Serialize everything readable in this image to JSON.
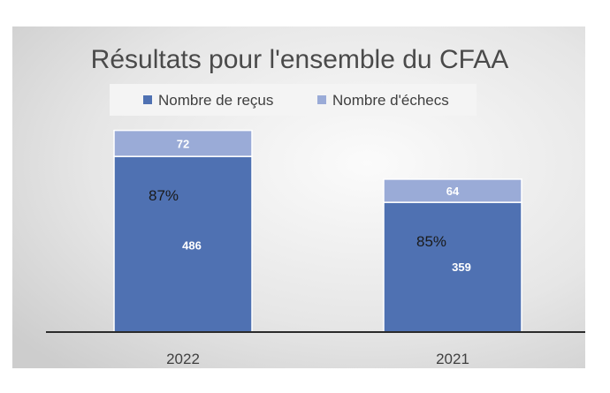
{
  "chart_data": {
    "type": "bar",
    "stacked": true,
    "title": "Résultats pour l'ensemble du CFAA",
    "legend_position": "top",
    "categories": [
      "2022",
      "2021"
    ],
    "series": [
      {
        "name": "Nombre de reçus",
        "values": [
          486,
          359
        ],
        "color": "#4f71b2"
      },
      {
        "name": "Nombre d'échecs",
        "values": [
          72,
          64
        ],
        "color": "#9aabd7"
      }
    ],
    "annotations": [
      "87%",
      "85%"
    ],
    "ylim": [
      0,
      650
    ],
    "grid": false,
    "background": "gradient-gray"
  }
}
